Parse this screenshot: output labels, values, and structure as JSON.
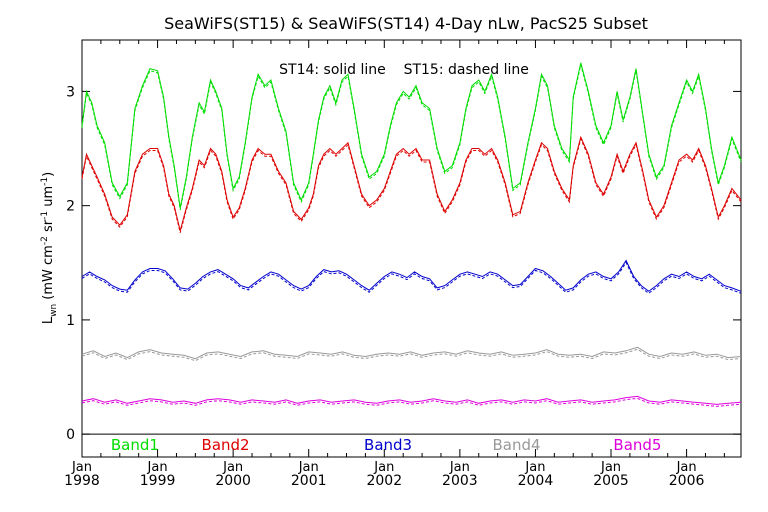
{
  "chart_data": {
    "type": "line",
    "title": "SeaWiFS(ST15) & SeaWiFS(ST14) 4-Day nLw, PacS25 Subset",
    "subtitle": "ST14: solid line    ST15: dashed line",
    "ylabel": "L_wn (mW cm^-2 sr^-1 um^-1)",
    "ylabel_parts": {
      "main": "L",
      "sub": "wn",
      "open": "(mW cm",
      "exp1": "-2",
      "sr": "sr",
      "exp2": "-1",
      "um": "um",
      "exp3": "-1",
      "close": ")"
    },
    "xlim": [
      1998.0,
      2006.72
    ],
    "ylim": [
      -0.2,
      3.45
    ],
    "yticks": [
      0,
      1,
      2,
      3
    ],
    "xticks": [
      {
        "year": 1998,
        "month": "Jan",
        "label": "1998"
      },
      {
        "year": 1999,
        "month": "Jan",
        "label": "1999"
      },
      {
        "year": 2000,
        "month": "Jan",
        "label": "2000"
      },
      {
        "year": 2001,
        "month": "Jan",
        "label": "2001"
      },
      {
        "year": 2002,
        "month": "Jan",
        "label": "2002"
      },
      {
        "year": 2003,
        "month": "Jan",
        "label": "2003"
      },
      {
        "year": 2004,
        "month": "Jan",
        "label": "2004"
      },
      {
        "year": 2005,
        "month": "Jan",
        "label": "2005"
      },
      {
        "year": 2006,
        "month": "Jan",
        "label": "2006"
      }
    ],
    "grid": false,
    "series": [
      {
        "name": "Band1",
        "color": "#00dd00",
        "x": [
          1998.0,
          1998.06,
          1998.13,
          1998.2,
          1998.3,
          1998.4,
          1998.5,
          1998.6,
          1998.7,
          1998.8,
          1998.9,
          1999.0,
          1999.08,
          1999.15,
          1999.22,
          1999.3,
          1999.38,
          1999.46,
          1999.55,
          1999.62,
          1999.7,
          1999.77,
          1999.85,
          1999.92,
          2000.0,
          2000.08,
          2000.16,
          2000.25,
          2000.33,
          2000.42,
          2000.5,
          2000.6,
          2000.7,
          2000.8,
          2000.9,
          2001.0,
          2001.06,
          2001.13,
          2001.2,
          2001.28,
          2001.36,
          2001.44,
          2001.52,
          2001.6,
          2001.7,
          2001.8,
          2001.9,
          2002.0,
          2002.08,
          2002.16,
          2002.25,
          2002.33,
          2002.42,
          2002.5,
          2002.6,
          2002.7,
          2002.8,
          2002.9,
          2003.0,
          2003.08,
          2003.16,
          2003.25,
          2003.33,
          2003.42,
          2003.5,
          2003.6,
          2003.7,
          2003.8,
          2003.9,
          2004.0,
          2004.08,
          2004.16,
          2004.25,
          2004.35,
          2004.45,
          2004.5,
          2004.6,
          2004.7,
          2004.8,
          2004.9,
          2005.0,
          2005.08,
          2005.16,
          2005.25,
          2005.33,
          2005.42,
          2005.5,
          2005.6,
          2005.7,
          2005.8,
          2005.9,
          2006.0,
          2006.08,
          2006.16,
          2006.25,
          2006.33,
          2006.42,
          2006.5,
          2006.6,
          2006.72
        ],
        "y": [
          2.7,
          3.0,
          2.9,
          2.7,
          2.55,
          2.2,
          2.08,
          2.2,
          2.85,
          3.05,
          3.2,
          3.18,
          2.95,
          2.6,
          2.35,
          1.98,
          2.25,
          2.6,
          2.9,
          2.82,
          3.1,
          3.0,
          2.85,
          2.45,
          2.15,
          2.25,
          2.55,
          2.95,
          3.15,
          3.05,
          3.1,
          2.85,
          2.65,
          2.2,
          2.05,
          2.2,
          2.45,
          2.75,
          2.95,
          3.05,
          2.9,
          3.1,
          3.15,
          2.85,
          2.45,
          2.25,
          2.3,
          2.45,
          2.7,
          2.9,
          3.0,
          2.95,
          3.05,
          2.9,
          2.85,
          2.5,
          2.3,
          2.35,
          2.55,
          2.85,
          3.05,
          3.1,
          3.0,
          3.15,
          2.95,
          2.6,
          2.15,
          2.2,
          2.55,
          2.85,
          3.15,
          3.05,
          2.7,
          2.5,
          2.4,
          2.95,
          3.25,
          3.0,
          2.7,
          2.55,
          2.7,
          3.0,
          2.75,
          2.95,
          3.2,
          2.8,
          2.45,
          2.25,
          2.35,
          2.7,
          2.9,
          3.1,
          3.0,
          3.15,
          2.85,
          2.5,
          2.2,
          2.35,
          2.6,
          2.4
        ]
      },
      {
        "name": "Band2",
        "color": "#dd0000",
        "x": [
          1998.0,
          1998.06,
          1998.13,
          1998.2,
          1998.3,
          1998.4,
          1998.5,
          1998.6,
          1998.7,
          1998.8,
          1998.9,
          1999.0,
          1999.08,
          1999.15,
          1999.22,
          1999.3,
          1999.38,
          1999.46,
          1999.55,
          1999.62,
          1999.7,
          1999.77,
          1999.85,
          1999.92,
          2000.0,
          2000.08,
          2000.16,
          2000.25,
          2000.33,
          2000.42,
          2000.5,
          2000.6,
          2000.7,
          2000.8,
          2000.9,
          2001.0,
          2001.06,
          2001.13,
          2001.2,
          2001.28,
          2001.36,
          2001.44,
          2001.52,
          2001.6,
          2001.7,
          2001.8,
          2001.9,
          2002.0,
          2002.08,
          2002.16,
          2002.25,
          2002.33,
          2002.42,
          2002.5,
          2002.6,
          2002.7,
          2002.8,
          2002.9,
          2003.0,
          2003.08,
          2003.16,
          2003.25,
          2003.33,
          2003.42,
          2003.5,
          2003.6,
          2003.7,
          2003.8,
          2003.9,
          2004.0,
          2004.08,
          2004.16,
          2004.25,
          2004.35,
          2004.45,
          2004.5,
          2004.6,
          2004.7,
          2004.8,
          2004.9,
          2005.0,
          2005.08,
          2005.16,
          2005.25,
          2005.33,
          2005.42,
          2005.5,
          2005.6,
          2005.7,
          2005.8,
          2005.9,
          2006.0,
          2006.08,
          2006.16,
          2006.25,
          2006.33,
          2006.42,
          2006.5,
          2006.6,
          2006.72
        ],
        "y": [
          2.25,
          2.45,
          2.35,
          2.25,
          2.1,
          1.9,
          1.83,
          1.92,
          2.3,
          2.45,
          2.5,
          2.5,
          2.35,
          2.1,
          2.0,
          1.78,
          1.98,
          2.15,
          2.4,
          2.35,
          2.5,
          2.45,
          2.3,
          2.05,
          1.9,
          1.98,
          2.15,
          2.4,
          2.5,
          2.45,
          2.45,
          2.3,
          2.2,
          1.95,
          1.88,
          1.98,
          2.1,
          2.35,
          2.45,
          2.5,
          2.45,
          2.5,
          2.55,
          2.35,
          2.1,
          2.0,
          2.05,
          2.15,
          2.3,
          2.45,
          2.5,
          2.45,
          2.5,
          2.4,
          2.4,
          2.1,
          1.95,
          2.05,
          2.2,
          2.4,
          2.5,
          2.5,
          2.45,
          2.5,
          2.4,
          2.2,
          1.92,
          1.95,
          2.2,
          2.4,
          2.55,
          2.5,
          2.3,
          2.15,
          2.05,
          2.35,
          2.6,
          2.45,
          2.2,
          2.1,
          2.25,
          2.45,
          2.3,
          2.45,
          2.55,
          2.3,
          2.05,
          1.9,
          2.0,
          2.2,
          2.4,
          2.45,
          2.4,
          2.5,
          2.35,
          2.15,
          1.9,
          2.0,
          2.15,
          2.05
        ]
      },
      {
        "name": "Band3",
        "color": "#0000cc",
        "x": [
          1998.0,
          1998.1,
          1998.2,
          1998.3,
          1998.4,
          1998.5,
          1998.6,
          1998.7,
          1998.8,
          1998.9,
          1999.0,
          1999.1,
          1999.2,
          1999.3,
          1999.4,
          1999.5,
          1999.6,
          1999.7,
          1999.8,
          1999.9,
          2000.0,
          2000.1,
          2000.2,
          2000.3,
          2000.4,
          2000.5,
          2000.6,
          2000.7,
          2000.8,
          2000.9,
          2001.0,
          2001.1,
          2001.2,
          2001.3,
          2001.4,
          2001.5,
          2001.6,
          2001.7,
          2001.8,
          2001.9,
          2002.0,
          2002.1,
          2002.2,
          2002.3,
          2002.4,
          2002.5,
          2002.6,
          2002.7,
          2002.8,
          2002.9,
          2003.0,
          2003.1,
          2003.2,
          2003.3,
          2003.4,
          2003.5,
          2003.6,
          2003.7,
          2003.8,
          2003.9,
          2004.0,
          2004.1,
          2004.2,
          2004.3,
          2004.4,
          2004.5,
          2004.6,
          2004.7,
          2004.8,
          2004.9,
          2005.0,
          2005.1,
          2005.2,
          2005.3,
          2005.4,
          2005.5,
          2005.6,
          2005.7,
          2005.8,
          2005.9,
          2006.0,
          2006.1,
          2006.2,
          2006.3,
          2006.4,
          2006.5,
          2006.6,
          2006.72
        ],
        "y": [
          1.38,
          1.42,
          1.38,
          1.35,
          1.3,
          1.27,
          1.26,
          1.35,
          1.42,
          1.45,
          1.45,
          1.43,
          1.36,
          1.28,
          1.27,
          1.32,
          1.38,
          1.42,
          1.44,
          1.4,
          1.36,
          1.3,
          1.28,
          1.33,
          1.38,
          1.42,
          1.4,
          1.35,
          1.3,
          1.27,
          1.3,
          1.38,
          1.44,
          1.42,
          1.43,
          1.4,
          1.35,
          1.3,
          1.26,
          1.32,
          1.38,
          1.42,
          1.4,
          1.37,
          1.42,
          1.38,
          1.36,
          1.28,
          1.3,
          1.35,
          1.4,
          1.42,
          1.4,
          1.38,
          1.42,
          1.4,
          1.35,
          1.3,
          1.31,
          1.38,
          1.45,
          1.43,
          1.38,
          1.32,
          1.26,
          1.28,
          1.35,
          1.4,
          1.42,
          1.38,
          1.36,
          1.42,
          1.52,
          1.38,
          1.3,
          1.25,
          1.3,
          1.36,
          1.4,
          1.38,
          1.42,
          1.38,
          1.36,
          1.4,
          1.35,
          1.3,
          1.28,
          1.25
        ]
      },
      {
        "name": "Band4",
        "color": "#999999",
        "x": [
          1998.0,
          1998.15,
          1998.3,
          1998.45,
          1998.6,
          1998.75,
          1998.9,
          1999.05,
          1999.2,
          1999.35,
          1999.5,
          1999.65,
          1999.8,
          1999.95,
          2000.1,
          2000.25,
          2000.4,
          2000.55,
          2000.7,
          2000.85,
          2001.0,
          2001.15,
          2001.3,
          2001.45,
          2001.6,
          2001.75,
          2001.9,
          2002.05,
          2002.2,
          2002.35,
          2002.5,
          2002.65,
          2002.8,
          2002.95,
          2003.1,
          2003.25,
          2003.4,
          2003.55,
          2003.7,
          2003.85,
          2004.0,
          2004.15,
          2004.3,
          2004.45,
          2004.6,
          2004.75,
          2004.9,
          2005.05,
          2005.2,
          2005.35,
          2005.5,
          2005.65,
          2005.8,
          2005.95,
          2006.1,
          2006.25,
          2006.4,
          2006.55,
          2006.72
        ],
        "y": [
          0.7,
          0.73,
          0.68,
          0.71,
          0.67,
          0.72,
          0.74,
          0.71,
          0.7,
          0.69,
          0.66,
          0.71,
          0.72,
          0.7,
          0.68,
          0.72,
          0.73,
          0.7,
          0.69,
          0.68,
          0.72,
          0.71,
          0.7,
          0.72,
          0.69,
          0.68,
          0.7,
          0.71,
          0.7,
          0.72,
          0.69,
          0.71,
          0.72,
          0.7,
          0.73,
          0.71,
          0.7,
          0.72,
          0.69,
          0.7,
          0.71,
          0.74,
          0.7,
          0.69,
          0.7,
          0.68,
          0.72,
          0.71,
          0.73,
          0.76,
          0.7,
          0.68,
          0.71,
          0.7,
          0.72,
          0.69,
          0.7,
          0.67,
          0.68
        ]
      },
      {
        "name": "Band5",
        "color": "#dd00dd",
        "x": [
          1998.0,
          1998.15,
          1998.3,
          1998.45,
          1998.6,
          1998.75,
          1998.9,
          1999.05,
          1999.2,
          1999.35,
          1999.5,
          1999.65,
          1999.8,
          1999.95,
          2000.1,
          2000.25,
          2000.4,
          2000.55,
          2000.7,
          2000.85,
          2001.0,
          2001.15,
          2001.3,
          2001.45,
          2001.6,
          2001.75,
          2001.9,
          2002.05,
          2002.2,
          2002.35,
          2002.5,
          2002.65,
          2002.8,
          2002.95,
          2003.1,
          2003.25,
          2003.4,
          2003.55,
          2003.7,
          2003.85,
          2004.0,
          2004.15,
          2004.3,
          2004.45,
          2004.6,
          2004.75,
          2004.9,
          2005.05,
          2005.2,
          2005.35,
          2005.5,
          2005.65,
          2005.8,
          2005.95,
          2006.1,
          2006.25,
          2006.4,
          2006.55,
          2006.72
        ],
        "y": [
          0.29,
          0.31,
          0.28,
          0.3,
          0.27,
          0.29,
          0.31,
          0.3,
          0.28,
          0.29,
          0.27,
          0.3,
          0.31,
          0.3,
          0.28,
          0.3,
          0.29,
          0.28,
          0.3,
          0.27,
          0.29,
          0.3,
          0.28,
          0.29,
          0.3,
          0.28,
          0.27,
          0.29,
          0.3,
          0.28,
          0.29,
          0.31,
          0.29,
          0.28,
          0.3,
          0.27,
          0.29,
          0.3,
          0.28,
          0.3,
          0.29,
          0.31,
          0.28,
          0.29,
          0.3,
          0.28,
          0.29,
          0.3,
          0.32,
          0.33,
          0.29,
          0.28,
          0.3,
          0.29,
          0.28,
          0.27,
          0.26,
          0.27,
          0.28
        ]
      }
    ]
  }
}
